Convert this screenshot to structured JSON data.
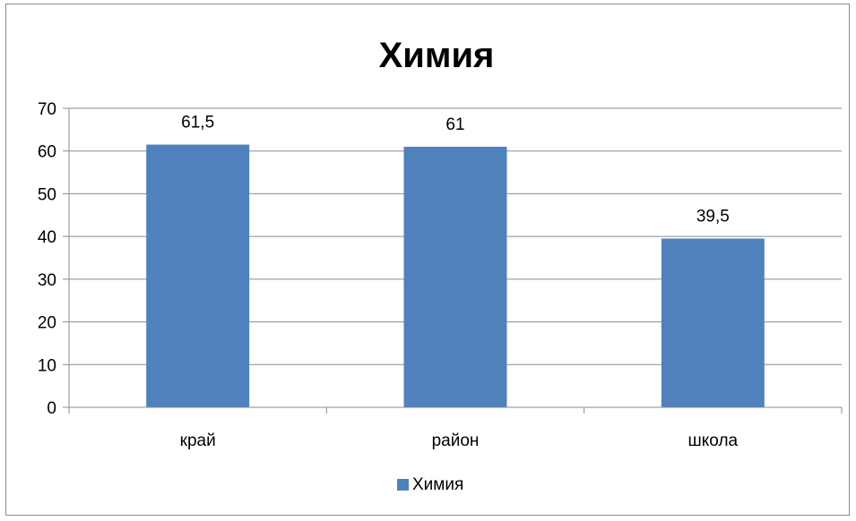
{
  "chart_data": {
    "type": "bar",
    "title": "Химия",
    "categories": [
      "край",
      "район",
      "школа"
    ],
    "series": [
      {
        "name": "Химия",
        "values": [
          61.5,
          61,
          39.5
        ],
        "data_labels": [
          "61,5",
          "61",
          "39,5"
        ],
        "color": "#4f81bd"
      }
    ],
    "ylim": [
      0,
      70
    ],
    "yticks": [
      0,
      10,
      20,
      30,
      40,
      50,
      60,
      70
    ],
    "xlabel": "",
    "ylabel": "",
    "grid": true,
    "legend": "bottom"
  }
}
